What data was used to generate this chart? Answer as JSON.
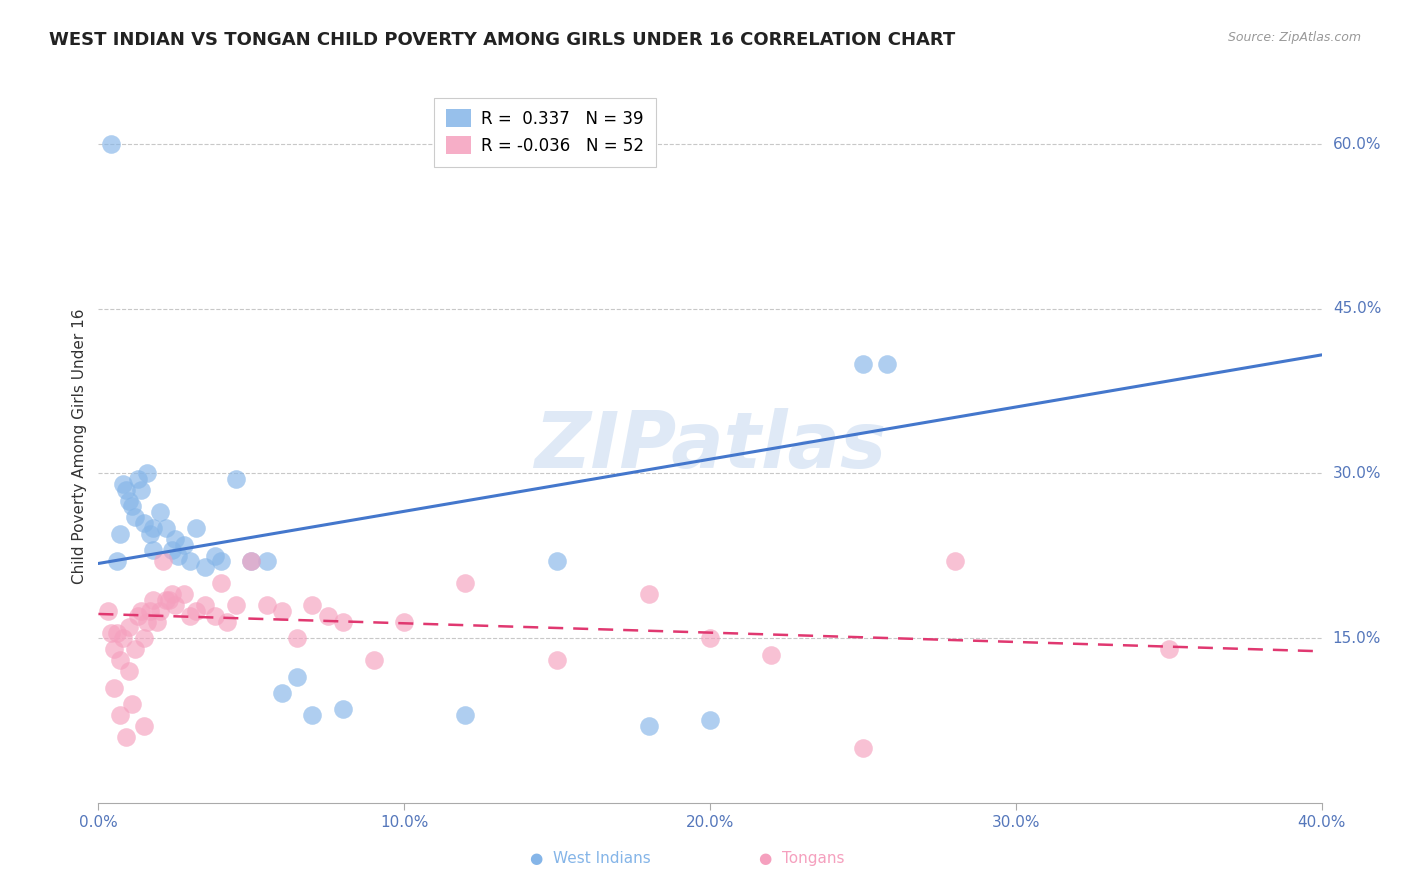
{
  "title": "WEST INDIAN VS TONGAN CHILD POVERTY AMONG GIRLS UNDER 16 CORRELATION CHART",
  "source": "Source: ZipAtlas.com",
  "ylabel": "Child Poverty Among Girls Under 16",
  "xlim": [
    0.0,
    0.4
  ],
  "ylim": [
    0.0,
    0.65
  ],
  "yticks_right": [
    0.6,
    0.45,
    0.3,
    0.15
  ],
  "ytick_labels_right": [
    "60.0%",
    "45.0%",
    "30.0%",
    "15.0%"
  ],
  "xticks": [
    0.0,
    0.1,
    0.2,
    0.3,
    0.4
  ],
  "xtick_labels": [
    "0.0%",
    "10.0%",
    "20.0%",
    "30.0%",
    "40.0%"
  ],
  "grid_color": "#c8c8c8",
  "background_color": "#ffffff",
  "west_indian_color": "#85b5e8",
  "tongan_color": "#f5a0be",
  "west_indian_line_color": "#4477cc",
  "tongan_line_color": "#e03870",
  "watermark": "ZIPatlas",
  "west_indian_R": "0.337",
  "west_indian_N": "39",
  "tongan_R": "-0.036",
  "tongan_N": "52",
  "wi_line_y0": 0.218,
  "wi_line_y1": 0.408,
  "to_line_y0": 0.172,
  "to_line_y1": 0.138,
  "west_indian_x": [
    0.004,
    0.006,
    0.007,
    0.008,
    0.009,
    0.01,
    0.011,
    0.012,
    0.013,
    0.014,
    0.015,
    0.016,
    0.017,
    0.018,
    0.02,
    0.022,
    0.024,
    0.025,
    0.026,
    0.028,
    0.03,
    0.032,
    0.035,
    0.038,
    0.04,
    0.045,
    0.05,
    0.055,
    0.06,
    0.065,
    0.07,
    0.08,
    0.12,
    0.15,
    0.18,
    0.2,
    0.25,
    0.258,
    0.018
  ],
  "west_indian_y": [
    0.6,
    0.22,
    0.245,
    0.29,
    0.285,
    0.275,
    0.27,
    0.26,
    0.295,
    0.285,
    0.255,
    0.3,
    0.245,
    0.25,
    0.265,
    0.25,
    0.23,
    0.24,
    0.225,
    0.235,
    0.22,
    0.25,
    0.215,
    0.225,
    0.22,
    0.295,
    0.22,
    0.22,
    0.1,
    0.115,
    0.08,
    0.085,
    0.08,
    0.22,
    0.07,
    0.075,
    0.4,
    0.4,
    0.23
  ],
  "tongan_x": [
    0.003,
    0.004,
    0.005,
    0.005,
    0.006,
    0.007,
    0.007,
    0.008,
    0.009,
    0.01,
    0.01,
    0.011,
    0.012,
    0.013,
    0.014,
    0.015,
    0.015,
    0.016,
    0.017,
    0.018,
    0.019,
    0.02,
    0.021,
    0.022,
    0.023,
    0.024,
    0.025,
    0.028,
    0.03,
    0.032,
    0.035,
    0.038,
    0.04,
    0.042,
    0.045,
    0.05,
    0.055,
    0.06,
    0.065,
    0.07,
    0.075,
    0.08,
    0.09,
    0.1,
    0.12,
    0.15,
    0.18,
    0.2,
    0.22,
    0.25,
    0.28,
    0.35
  ],
  "tongan_y": [
    0.175,
    0.155,
    0.14,
    0.105,
    0.155,
    0.13,
    0.08,
    0.15,
    0.06,
    0.12,
    0.16,
    0.09,
    0.14,
    0.17,
    0.175,
    0.15,
    0.07,
    0.165,
    0.175,
    0.185,
    0.165,
    0.175,
    0.22,
    0.185,
    0.185,
    0.19,
    0.18,
    0.19,
    0.17,
    0.175,
    0.18,
    0.17,
    0.2,
    0.165,
    0.18,
    0.22,
    0.18,
    0.175,
    0.15,
    0.18,
    0.17,
    0.165,
    0.13,
    0.165,
    0.2,
    0.13,
    0.19,
    0.15,
    0.135,
    0.05,
    0.22,
    0.14
  ]
}
